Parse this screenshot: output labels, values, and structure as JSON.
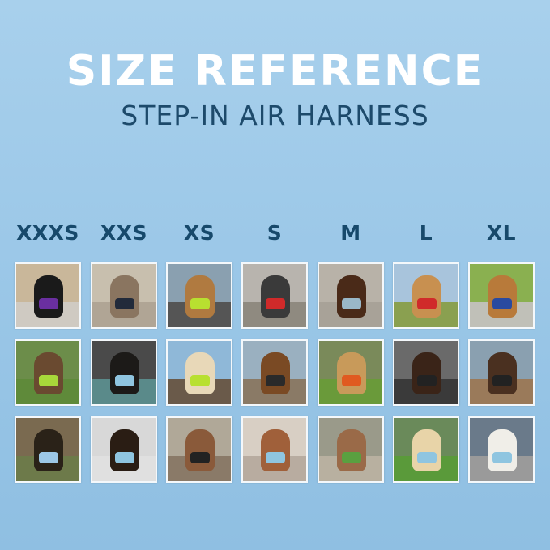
{
  "header": {
    "title": "SIZE REFERENCE",
    "subtitle": "STEP-IN AIR HARNESS"
  },
  "sizes": [
    {
      "label": "XXXS",
      "photos": [
        {
          "bg": "#c9b79a",
          "ground": "#cfcac2",
          "pet": "#1a1a1a",
          "harness": "#6a2fa0"
        },
        {
          "bg": "#6c8d4a",
          "ground": "#5f8a3a",
          "pet": "#6a4a30",
          "harness": "#a8d83a"
        },
        {
          "bg": "#7a6a50",
          "ground": "#6d7a4a",
          "pet": "#2a2218",
          "harness": "#9cc7e6"
        }
      ]
    },
    {
      "label": "XXS",
      "photos": [
        {
          "bg": "#c8bfae",
          "ground": "#b0a595",
          "pet": "#8a7560",
          "harness": "#222a3a"
        },
        {
          "bg": "#4a4a4a",
          "ground": "#5a8a8a",
          "pet": "#1c1a18",
          "harness": "#8fc5e0"
        },
        {
          "bg": "#d8d8d8",
          "ground": "#e0e0e0",
          "pet": "#2a1d14",
          "harness": "#8fc5e0"
        }
      ]
    },
    {
      "label": "XS",
      "photos": [
        {
          "bg": "#8aa0b0",
          "ground": "#555555",
          "pet": "#b07a40",
          "harness": "#b8e030"
        },
        {
          "bg": "#8fb8d8",
          "ground": "#6a5a4a",
          "pet": "#e8d8b8",
          "harness": "#b8e030"
        },
        {
          "bg": "#b0a898",
          "ground": "#8a7a68",
          "pet": "#8a5a3a",
          "harness": "#222222"
        }
      ]
    },
    {
      "label": "S",
      "photos": [
        {
          "bg": "#b8b4ae",
          "ground": "#8f8a80",
          "pet": "#3a3a3a",
          "harness": "#d02a2a"
        },
        {
          "bg": "#9ab0c0",
          "ground": "#8a7a66",
          "pet": "#7a4a24",
          "harness": "#2a2a2a"
        },
        {
          "bg": "#d8cfc4",
          "ground": "#b8aca0",
          "pet": "#a0603a",
          "harness": "#8fc5e0"
        }
      ]
    },
    {
      "label": "M",
      "photos": [
        {
          "bg": "#b8b2a8",
          "ground": "#a8a298",
          "pet": "#4a2a18",
          "harness": "#9ab8c8"
        },
        {
          "bg": "#7a8a5a",
          "ground": "#6a9a3a",
          "pet": "#c89a5a",
          "harness": "#e05a20"
        },
        {
          "bg": "#9a9a8a",
          "ground": "#b8b0a0",
          "pet": "#9a6a48",
          "harness": "#5aa040"
        }
      ]
    },
    {
      "label": "L",
      "photos": [
        {
          "bg": "#a8c4dc",
          "ground": "#8aa050",
          "pet": "#c89050",
          "harness": "#d02a2a"
        },
        {
          "bg": "#6a6a6a",
          "ground": "#3a3a3a",
          "pet": "#3a2418",
          "harness": "#222222"
        },
        {
          "bg": "#6a8a5a",
          "ground": "#5a9a3a",
          "pet": "#e8d4a8",
          "harness": "#8fc5e0"
        }
      ]
    },
    {
      "label": "XL",
      "photos": [
        {
          "bg": "#8ab050",
          "ground": "#c0c0b8",
          "pet": "#b87a3a",
          "harness": "#2a4aa0"
        },
        {
          "bg": "#8aa0b0",
          "ground": "#9a7a5a",
          "pet": "#4a3020",
          "harness": "#222222"
        },
        {
          "bg": "#6a7a8a",
          "ground": "#9a9a9a",
          "pet": "#f0eee8",
          "harness": "#8fc5e0"
        }
      ]
    }
  ]
}
